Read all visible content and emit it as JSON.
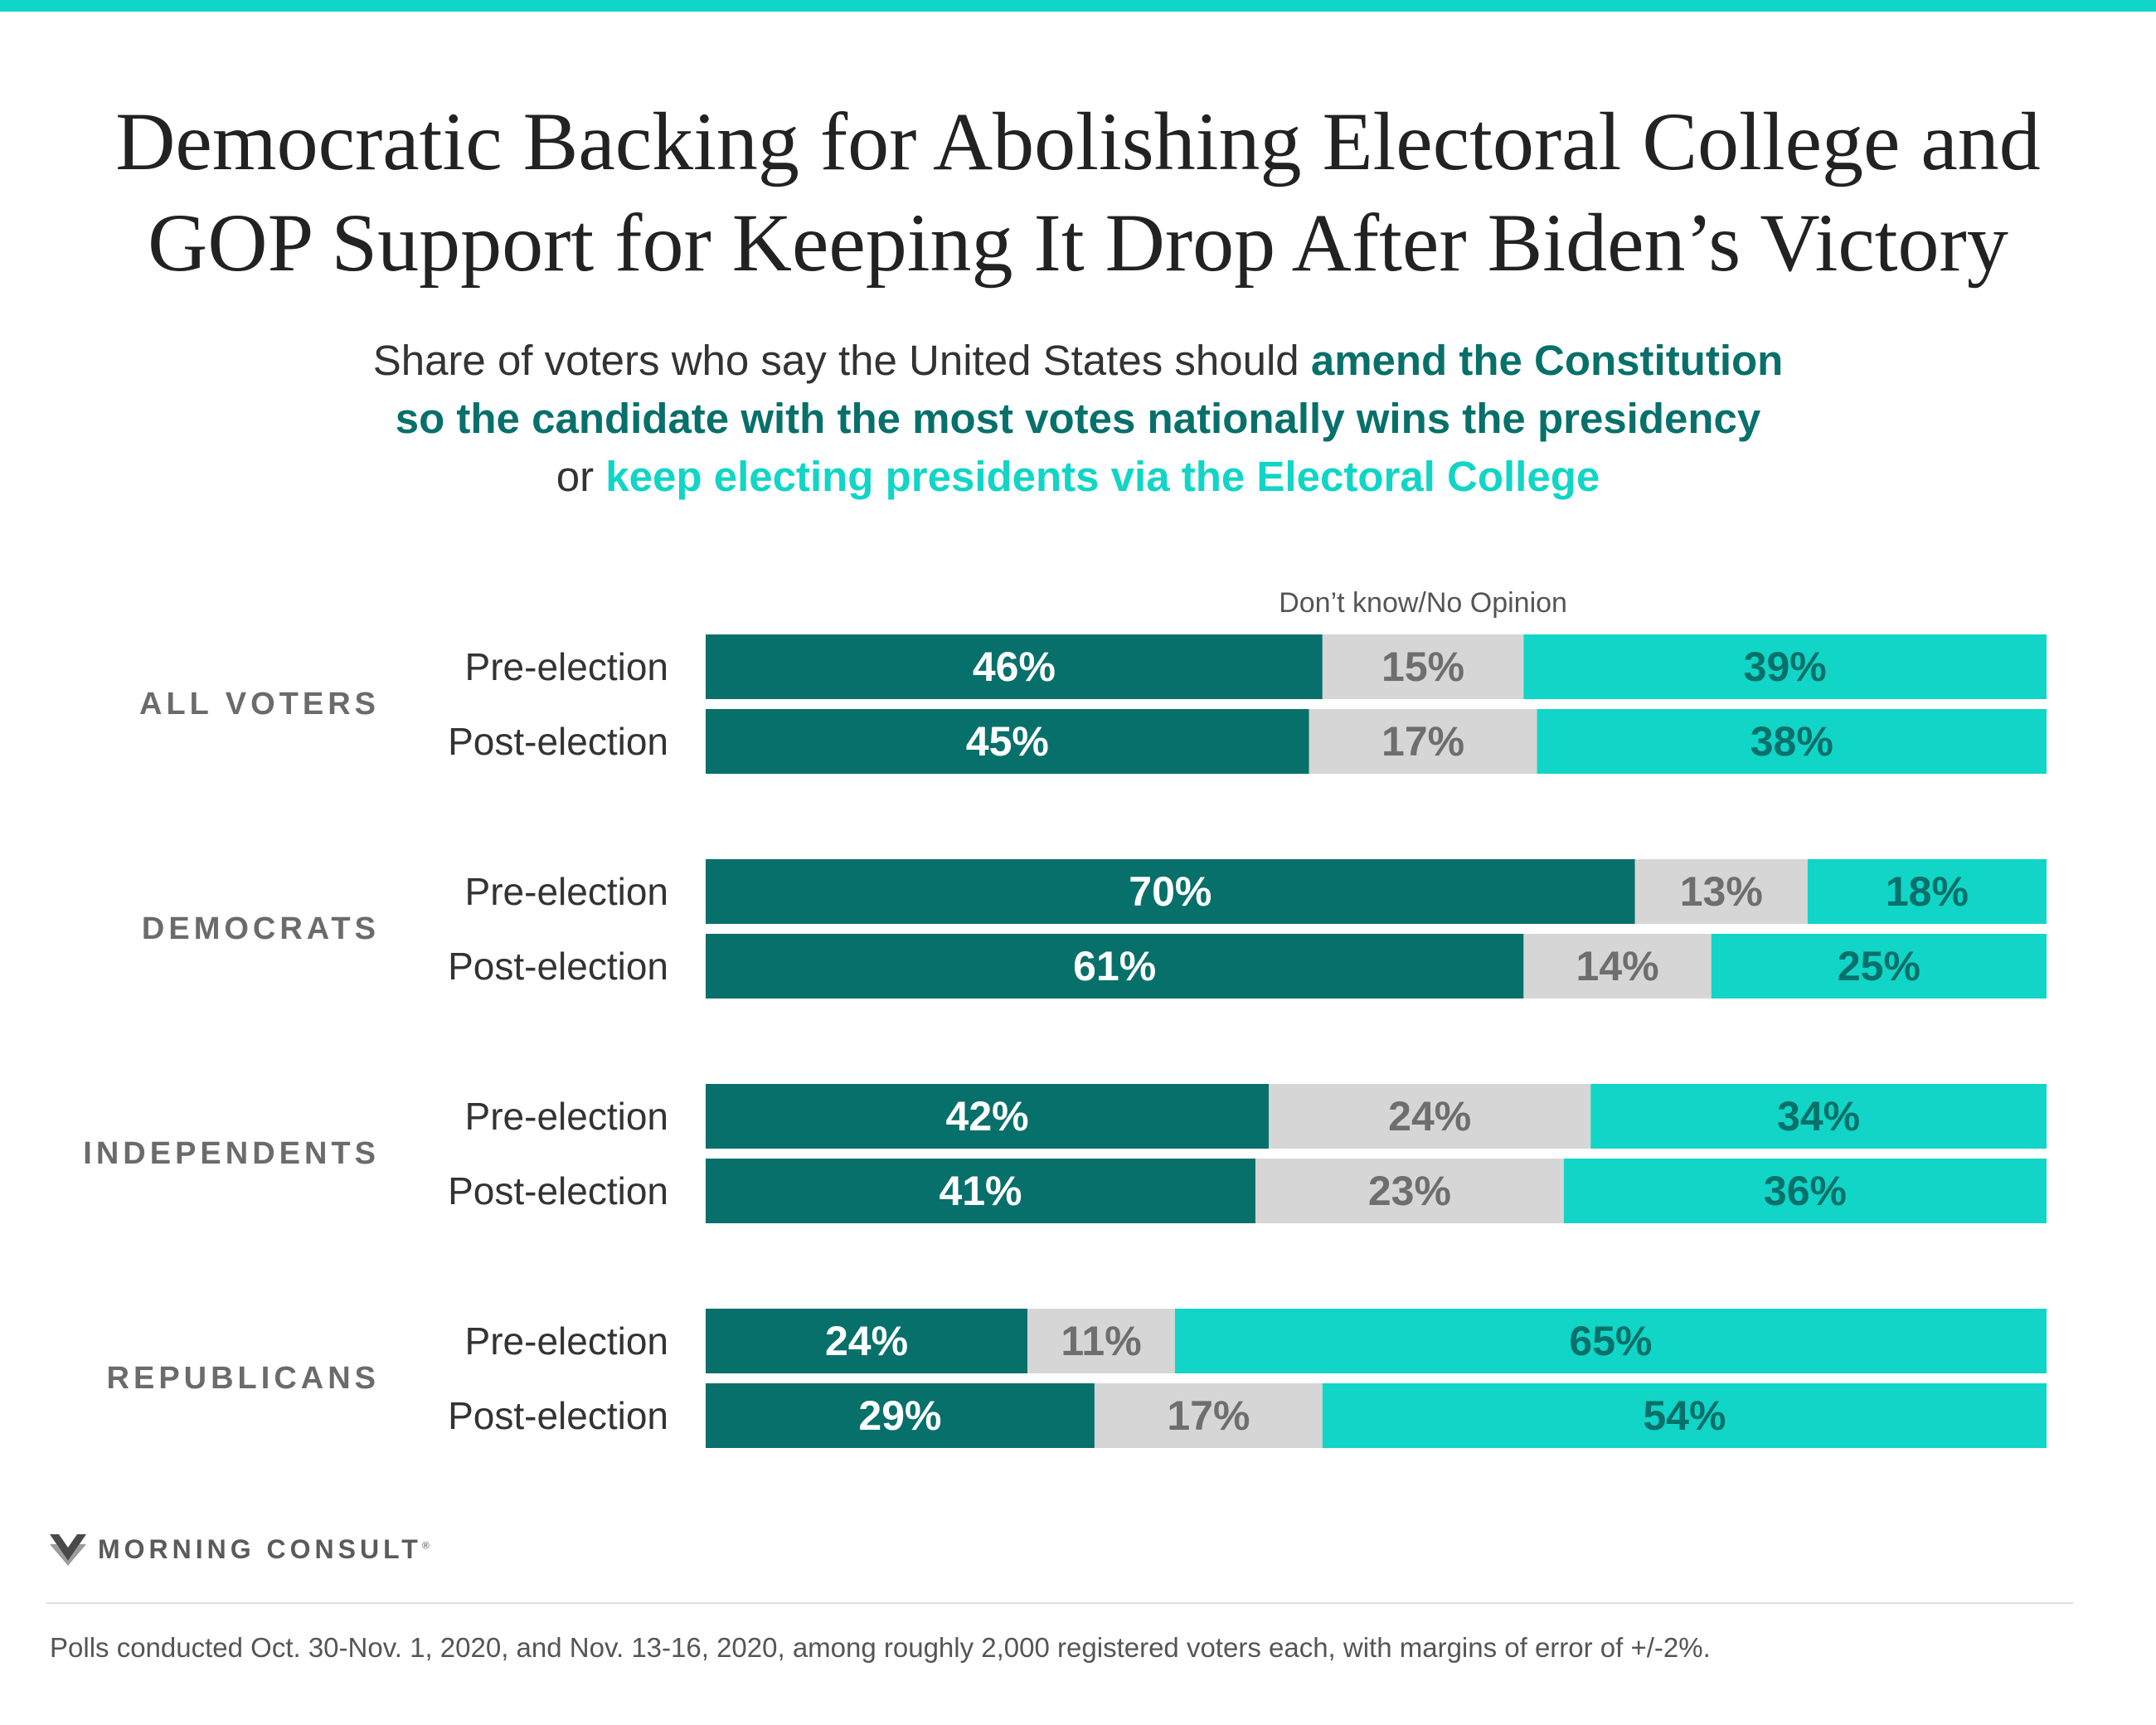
{
  "header": {
    "title_line1": "Democratic Backing for Abolishing Electoral College and",
    "title_line2": "GOP Support for Keeping It Drop After Biden’s Victory",
    "subtitle_l1_plain": "Share of voters who say the United States should ",
    "subtitle_l1_highlight": "amend the Constitution",
    "subtitle_l2_highlight": "so the candidate with the most votes nationally wins the presidency",
    "subtitle_l3_plain": "or ",
    "subtitle_l3_highlight": "keep electing presidents via the Electoral College"
  },
  "colors": {
    "amend": "#08706a",
    "dont_know": "#d6d6d6",
    "keep": "#11d5c6",
    "group_label": "#6b6b6b",
    "row_label": "#333333",
    "dont_know_text": "#6e6e6e"
  },
  "chart_data": {
    "type": "bar",
    "orientation": "horizontal",
    "stacked": true,
    "segment_note": "Don’t know/No Opinion",
    "series": [
      {
        "name": "amend the Constitution so the candidate with the most votes nationally wins the presidency",
        "key": "amend"
      },
      {
        "name": "Don’t know/No Opinion",
        "key": "dont_know"
      },
      {
        "name": "keep electing presidents via the Electoral College",
        "key": "keep"
      }
    ],
    "groups": [
      {
        "name": "ALL VOTERS",
        "rows": [
          {
            "label": "Pre-election",
            "values": [
              46,
              15,
              39
            ],
            "labels": [
              "46%",
              "15%",
              "39%"
            ]
          },
          {
            "label": "Post-election",
            "values": [
              45,
              17,
              38
            ],
            "labels": [
              "45%",
              "17%",
              "38%"
            ]
          }
        ]
      },
      {
        "name": "DEMOCRATS",
        "rows": [
          {
            "label": "Pre-election",
            "values": [
              70,
              13,
              18
            ],
            "labels": [
              "70%",
              "13%",
              "18%"
            ]
          },
          {
            "label": "Post-election",
            "values": [
              61,
              14,
              25
            ],
            "labels": [
              "61%",
              "14%",
              "25%"
            ]
          }
        ]
      },
      {
        "name": "INDEPENDENTS",
        "rows": [
          {
            "label": "Pre-election",
            "values": [
              42,
              24,
              34
            ],
            "labels": [
              "42%",
              "24%",
              "34%"
            ]
          },
          {
            "label": "Post-election",
            "values": [
              41,
              23,
              36
            ],
            "labels": [
              "41%",
              "23%",
              "36%"
            ]
          }
        ]
      },
      {
        "name": "REPUBLICANS",
        "rows": [
          {
            "label": "Pre-election",
            "values": [
              24,
              11,
              65
            ],
            "labels": [
              "24%",
              "11%",
              "65%"
            ]
          },
          {
            "label": "Post-election",
            "values": [
              29,
              17,
              54
            ],
            "labels": [
              "29%",
              "17%",
              "54%"
            ]
          }
        ]
      }
    ]
  },
  "footer": {
    "logo_text": "MORNING CONSULT",
    "logo_reg": "®",
    "logo_icon": "morning-consult-chevron-icon",
    "note": "Polls conducted Oct. 30-Nov. 1, 2020, and Nov. 13-16, 2020, among roughly 2,000 registered voters each, with margins of error of +/-2%."
  }
}
